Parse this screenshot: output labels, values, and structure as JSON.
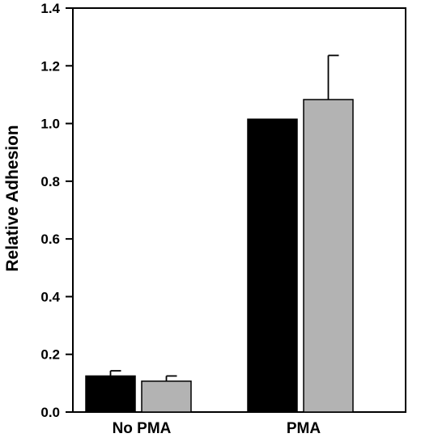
{
  "chart_data": {
    "type": "bar",
    "title": "",
    "xlabel": "",
    "ylabel": "Relative Adhesion",
    "categories": [
      "No PMA",
      "PMA"
    ],
    "series": [
      {
        "values": [
          0.125,
          1.015
        ],
        "errors": [
          0.018,
          0.0
        ],
        "color": "#000000"
      },
      {
        "values": [
          0.107,
          1.083
        ],
        "errors": [
          0.018,
          0.153
        ],
        "color": "#b3b3b3"
      }
    ],
    "ylim": [
      0,
      1.4
    ],
    "yticks": [
      0.0,
      0.2,
      0.4,
      0.6,
      0.8,
      1.0,
      1.2,
      1.4
    ],
    "ytick_labels": [
      "0.0",
      "0.2",
      "0.4",
      "0.6",
      "0.8",
      "1.0",
      "1.2",
      "1.4"
    ],
    "grid": false,
    "legend": "none"
  }
}
